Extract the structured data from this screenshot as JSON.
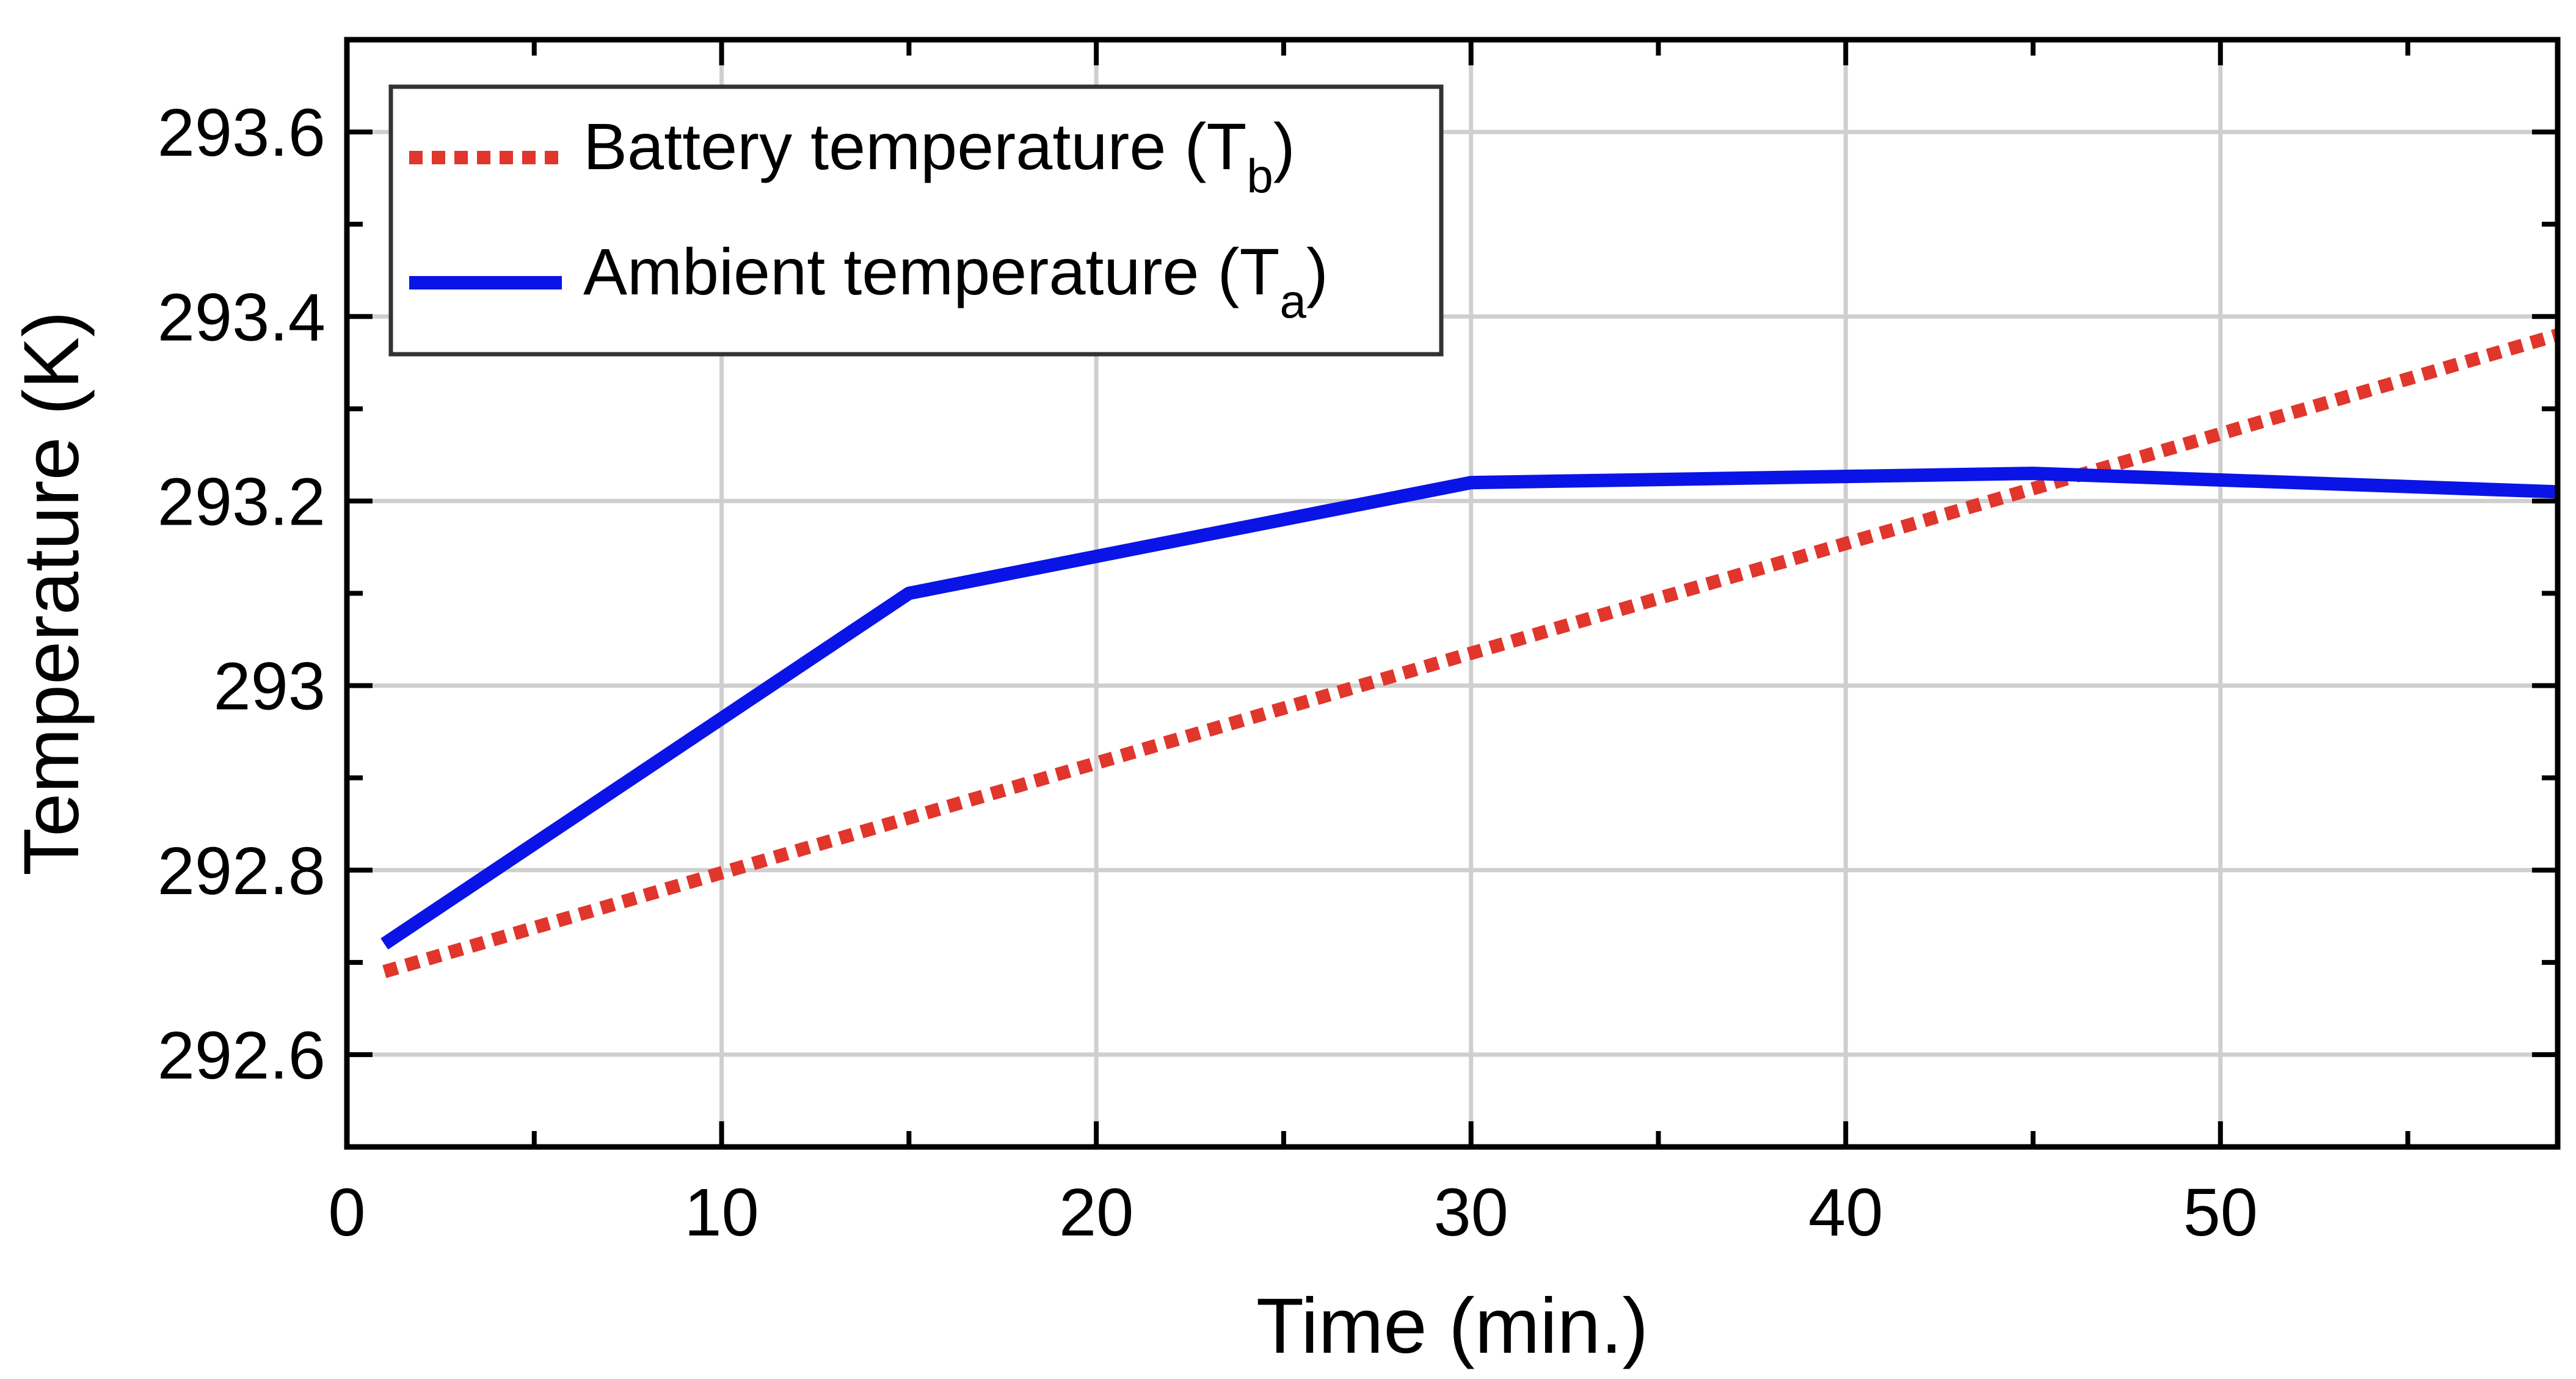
{
  "chart_data": {
    "type": "line",
    "xlabel": "Time (min.)",
    "ylabel": "Temperature (K)",
    "xlim": [
      0,
      59
    ],
    "ylim": [
      292.5,
      293.7
    ],
    "x_ticks": [
      0,
      10,
      20,
      30,
      40,
      50
    ],
    "x_tick_labels": [
      "0",
      "10",
      "20",
      "30",
      "40",
      "50"
    ],
    "y_ticks": [
      292.6,
      292.8,
      293.0,
      293.2,
      293.4,
      293.6
    ],
    "y_tick_labels": [
      "292.6",
      "292.8",
      "293",
      "293.2",
      "293.4",
      "293.6"
    ],
    "grid": true,
    "legend_position": "top-left",
    "series": [
      {
        "name": "Battery temperature (T_b)",
        "legend_main": "Battery temperature (T",
        "legend_sub": "b",
        "legend_close": ")",
        "style": "dotted",
        "color": "#e0362c",
        "x": [
          1,
          59
        ],
        "y": [
          292.69,
          293.38
        ]
      },
      {
        "name": "Ambient temperature (T_a)",
        "legend_main": "Ambient temperature (T",
        "legend_sub": "a",
        "legend_close": ")",
        "style": "solid",
        "color": "#0a14e6",
        "x": [
          1,
          15,
          30,
          45,
          59
        ],
        "y": [
          292.72,
          293.1,
          293.22,
          293.23,
          293.21
        ]
      }
    ]
  }
}
